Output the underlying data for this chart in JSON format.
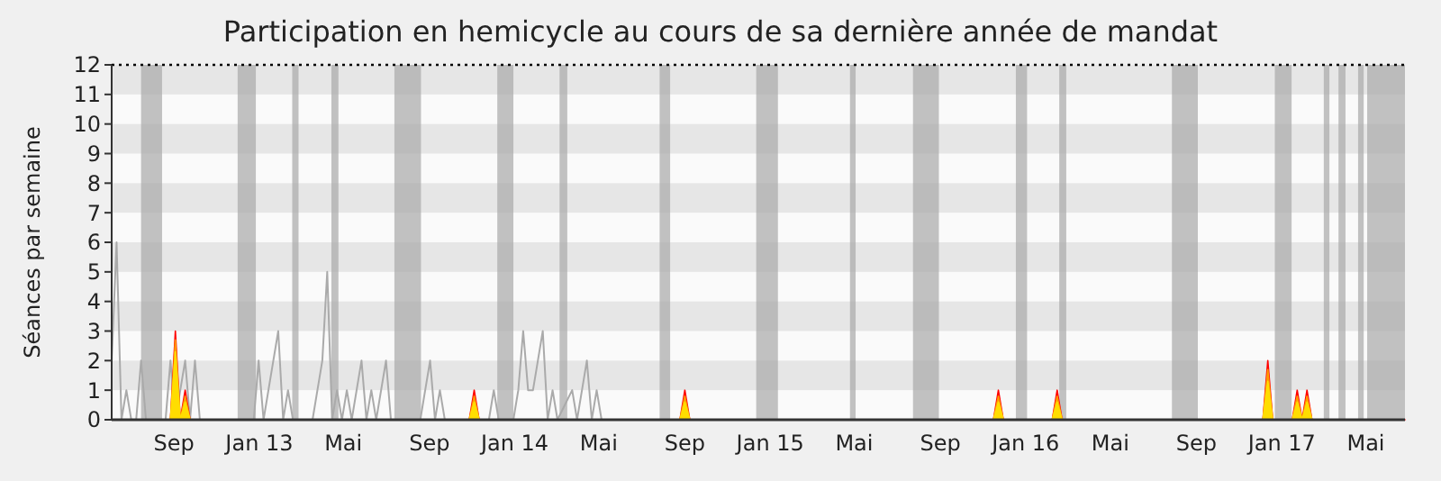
{
  "chart_data": {
    "type": "line",
    "title": "Participation en hemicycle au cours de sa dernière année de mandat",
    "ylabel": "Séances par semaine",
    "xlim": [
      "2012-06-04",
      "2017-06-26"
    ],
    "ylim": [
      0,
      12
    ],
    "xticks": [
      {
        "value": "2012-09-01",
        "label": "Sep"
      },
      {
        "value": "2013-01-01",
        "label": "Jan 13"
      },
      {
        "value": "2013-05-01",
        "label": "Mai"
      },
      {
        "value": "2013-09-01",
        "label": "Sep"
      },
      {
        "value": "2014-01-01",
        "label": "Jan 14"
      },
      {
        "value": "2014-05-01",
        "label": "Mai"
      },
      {
        "value": "2014-09-01",
        "label": "Sep"
      },
      {
        "value": "2015-01-01",
        "label": "Jan 15"
      },
      {
        "value": "2015-05-01",
        "label": "Mai"
      },
      {
        "value": "2015-09-01",
        "label": "Sep"
      },
      {
        "value": "2016-01-01",
        "label": "Jan 16"
      },
      {
        "value": "2016-05-01",
        "label": "Mai"
      },
      {
        "value": "2016-09-01",
        "label": "Sep"
      },
      {
        "value": "2017-01-01",
        "label": "Jan 17"
      },
      {
        "value": "2017-05-01",
        "label": "Mai"
      }
    ],
    "yticks": [
      0,
      1,
      2,
      3,
      4,
      5,
      6,
      7,
      8,
      9,
      10,
      11,
      12
    ],
    "grid": false,
    "bands": [
      {
        "axis": "y",
        "from": 1,
        "to": 2,
        "color": "#e6e6e6"
      },
      {
        "axis": "y",
        "from": 3,
        "to": 4,
        "color": "#e6e6e6"
      },
      {
        "axis": "y",
        "from": 5,
        "to": 6,
        "color": "#e6e6e6"
      },
      {
        "axis": "y",
        "from": 7,
        "to": 8,
        "color": "#e6e6e6"
      },
      {
        "axis": "y",
        "from": 9,
        "to": 10,
        "color": "#e6e6e6"
      },
      {
        "axis": "y",
        "from": 11,
        "to": 12,
        "color": "#e6e6e6"
      },
      {
        "axis": "x",
        "from": "2012-07-16",
        "to": "2012-08-15",
        "color": "#a8a8a8"
      },
      {
        "axis": "x",
        "from": "2012-12-01",
        "to": "2012-12-27",
        "color": "#a8a8a8"
      },
      {
        "axis": "x",
        "from": "2013-02-17",
        "to": "2013-02-26",
        "color": "#a8a8a8"
      },
      {
        "axis": "x",
        "from": "2013-04-14",
        "to": "2013-04-24",
        "color": "#a8a8a8"
      },
      {
        "axis": "x",
        "from": "2013-07-13",
        "to": "2013-08-20",
        "color": "#a8a8a8"
      },
      {
        "axis": "x",
        "from": "2013-12-07",
        "to": "2013-12-30",
        "color": "#a8a8a8"
      },
      {
        "axis": "x",
        "from": "2014-03-06",
        "to": "2014-03-17",
        "color": "#a8a8a8"
      },
      {
        "axis": "x",
        "from": "2014-07-27",
        "to": "2014-08-11",
        "color": "#a8a8a8"
      },
      {
        "axis": "x",
        "from": "2014-12-12",
        "to": "2015-01-12",
        "color": "#a8a8a8"
      },
      {
        "axis": "x",
        "from": "2015-04-25",
        "to": "2015-05-03",
        "color": "#a8a8a8"
      },
      {
        "axis": "x",
        "from": "2015-07-24",
        "to": "2015-08-30",
        "color": "#a8a8a8"
      },
      {
        "axis": "x",
        "from": "2015-12-18",
        "to": "2016-01-03",
        "color": "#a8a8a8"
      },
      {
        "axis": "x",
        "from": "2016-02-18",
        "to": "2016-02-28",
        "color": "#a8a8a8"
      },
      {
        "axis": "x",
        "from": "2016-07-28",
        "to": "2016-09-03",
        "color": "#a8a8a8"
      },
      {
        "axis": "x",
        "from": "2016-12-22",
        "to": "2017-01-15",
        "color": "#a8a8a8"
      },
      {
        "axis": "x",
        "from": "2017-03-02",
        "to": "2017-03-10",
        "color": "#a8a8a8"
      },
      {
        "axis": "x",
        "from": "2017-03-23",
        "to": "2017-04-02",
        "color": "#a8a8a8"
      },
      {
        "axis": "x",
        "from": "2017-04-20",
        "to": "2017-04-28",
        "color": "#a8a8a8"
      },
      {
        "axis": "x",
        "from": "2017-05-03",
        "to": "2017-06-26",
        "color": "#a8a8a8"
      }
    ],
    "ref_lines": [
      {
        "axis": "y",
        "value": 12,
        "color": "#000000",
        "line_style": "dotted"
      }
    ],
    "series": [
      {
        "color": "#aaaaaa",
        "x": [
          "2012-06-04",
          "2012-06-11",
          "2012-06-18",
          "2012-06-25",
          "2012-07-02",
          "2012-07-09",
          "2012-07-16",
          "2012-07-23",
          "2012-07-30",
          "2012-08-20",
          "2012-08-27",
          "2012-09-03",
          "2012-09-17",
          "2012-09-24",
          "2012-10-01",
          "2012-10-08",
          "2012-12-24",
          "2012-12-31",
          "2013-01-07",
          "2013-01-14",
          "2013-01-21",
          "2013-01-28",
          "2013-02-04",
          "2013-02-11",
          "2013-02-18",
          "2013-03-18",
          "2013-03-25",
          "2013-04-01",
          "2013-04-08",
          "2013-04-15",
          "2013-04-22",
          "2013-04-29",
          "2013-05-06",
          "2013-05-13",
          "2013-05-20",
          "2013-05-27",
          "2013-06-03",
          "2013-06-10",
          "2013-06-17",
          "2013-06-24",
          "2013-07-01",
          "2013-07-08",
          "2013-08-19",
          "2013-08-26",
          "2013-09-02",
          "2013-09-09",
          "2013-09-16",
          "2013-09-23",
          "2013-11-25",
          "2013-12-02",
          "2013-12-09",
          "2013-12-30",
          "2014-01-06",
          "2014-01-13",
          "2014-01-20",
          "2014-01-27",
          "2014-02-03",
          "2014-02-10",
          "2014-02-17",
          "2014-02-24",
          "2014-03-03",
          "2014-03-24",
          "2014-03-31",
          "2014-04-07",
          "2014-04-14",
          "2014-04-21",
          "2014-04-28",
          "2014-05-05"
        ],
        "values": [
          2,
          6,
          0,
          1,
          0,
          0,
          2,
          0,
          0,
          0,
          2,
          0,
          2,
          0,
          2,
          0,
          0,
          2,
          0,
          1,
          2,
          3,
          0,
          1,
          0,
          0,
          1,
          2,
          5,
          0,
          1,
          0,
          1,
          0,
          1,
          2,
          0,
          1,
          0,
          1,
          2,
          0,
          0,
          1,
          2,
          0,
          1,
          0,
          0,
          1,
          0,
          0,
          1,
          3,
          1,
          1,
          2,
          3,
          0,
          1,
          0,
          1,
          0,
          1,
          2,
          0,
          1,
          0
        ]
      },
      {
        "type": "area",
        "color": "#ff0000",
        "x": [
          "2012-06-04",
          "2012-08-27",
          "2012-09-03",
          "2012-09-10",
          "2012-09-17",
          "2012-09-24",
          "2013-10-28",
          "2013-11-04",
          "2013-11-11",
          "2014-08-25",
          "2014-09-01",
          "2014-09-08",
          "2015-11-16",
          "2015-11-23",
          "2015-11-30",
          "2016-02-08",
          "2016-02-15",
          "2016-02-22",
          "2016-12-05",
          "2016-12-12",
          "2016-12-19",
          "2017-01-16",
          "2017-01-23",
          "2017-01-30",
          "2017-02-06",
          "2017-02-13",
          "2017-06-26"
        ],
        "values": [
          0,
          0,
          3,
          0,
          1,
          0,
          0,
          1,
          0,
          0,
          1,
          0,
          0,
          1,
          0,
          0,
          1,
          0,
          0,
          2,
          0,
          0,
          1,
          0,
          1,
          0,
          0
        ]
      },
      {
        "type": "area",
        "color": "#ff9900",
        "x": [
          "2012-08-27",
          "2012-09-03",
          "2012-09-10",
          "2012-09-17",
          "2012-09-24",
          "2013-10-28",
          "2013-11-04",
          "2013-11-11",
          "2014-08-25",
          "2014-09-01",
          "2014-09-08",
          "2015-11-16",
          "2015-11-23",
          "2015-11-30",
          "2016-02-08",
          "2016-02-15",
          "2016-02-22",
          "2016-12-05",
          "2016-12-12",
          "2016-12-19",
          "2017-01-16",
          "2017-01-23",
          "2017-01-30",
          "2017-02-06",
          "2017-02-13"
        ],
        "values": [
          0,
          2.7,
          0,
          0.8,
          0,
          0,
          0.8,
          0,
          0,
          0.8,
          0,
          0,
          0.8,
          0,
          0,
          0.8,
          0,
          0,
          1.7,
          0,
          0,
          0.8,
          0,
          0.8,
          0
        ]
      },
      {
        "type": "area",
        "color": "#ffdd00",
        "x": [
          "2012-08-27",
          "2012-09-03",
          "2012-09-10",
          "2012-09-17",
          "2012-09-24",
          "2013-10-28",
          "2013-11-04",
          "2013-11-11",
          "2014-08-25",
          "2014-09-01",
          "2014-09-08",
          "2015-11-16",
          "2015-11-23",
          "2015-11-30",
          "2016-02-08",
          "2016-02-15",
          "2016-02-22",
          "2016-12-05",
          "2016-12-12",
          "2016-12-19",
          "2017-01-16",
          "2017-01-23",
          "2017-01-30",
          "2017-02-06",
          "2017-02-13"
        ],
        "values": [
          0,
          2.3,
          0,
          0.6,
          0,
          0,
          0.6,
          0,
          0,
          0.6,
          0,
          0,
          0.6,
          0,
          0,
          0.6,
          0,
          0,
          1.3,
          0,
          0,
          0.6,
          0,
          0.6,
          0
        ]
      }
    ]
  }
}
